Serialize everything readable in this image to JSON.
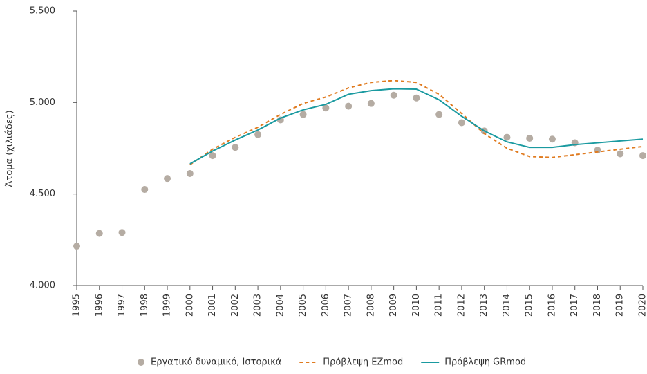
{
  "chart_data": {
    "type": "line",
    "y_label": "Άτομα (χιλιάδες)",
    "categories": [
      "1995",
      "1996",
      "1997",
      "1998",
      "1999",
      "2000",
      "2001",
      "2002",
      "2003",
      "2004",
      "2005",
      "2006",
      "2007",
      "2008",
      "2009",
      "2010",
      "2011",
      "2012",
      "2013",
      "2014",
      "2015",
      "2016",
      "2017",
      "2018",
      "2019",
      "2020"
    ],
    "series": [
      {
        "name": "Εργατικό δυναμικό, Ιστορικά",
        "kind": "scatter",
        "color": "#b5aca3",
        "values": [
          4215,
          4285,
          4290,
          4525,
          4585,
          4612,
          4710,
          4755,
          4825,
          4905,
          4935,
          4970,
          4980,
          4995,
          5040,
          5025,
          4935,
          4890,
          4845,
          4810,
          4805,
          4800,
          4780,
          4740,
          4720,
          4710
        ]
      },
      {
        "name": "Πρόβλεψη EZmod",
        "kind": "line",
        "dashed": true,
        "color": "#e07b20",
        "values": [
          null,
          null,
          null,
          null,
          null,
          4660,
          4745,
          4810,
          4865,
          4935,
          4995,
          5030,
          5080,
          5110,
          5120,
          5110,
          5045,
          4940,
          4830,
          4750,
          4705,
          4700,
          4715,
          4730,
          4745,
          4760
        ]
      },
      {
        "name": "Πρόβλεψη GRmod",
        "kind": "line",
        "dashed": false,
        "color": "#1a9aa0",
        "values": [
          null,
          null,
          null,
          null,
          null,
          4665,
          4735,
          4795,
          4850,
          4915,
          4960,
          4990,
          5045,
          5065,
          5075,
          5073,
          5015,
          4925,
          4845,
          4785,
          4755,
          4755,
          4770,
          4780,
          4790,
          4800
        ]
      }
    ],
    "ylim": [
      4000,
      5500
    ],
    "yticks": [
      {
        "value": 4000,
        "label": "4.000"
      },
      {
        "value": 4500,
        "label": "4.500"
      },
      {
        "value": 5000,
        "label": "5.000"
      },
      {
        "value": 5500,
        "label": "5.500"
      }
    ],
    "grid": false,
    "legend": "bottom"
  }
}
